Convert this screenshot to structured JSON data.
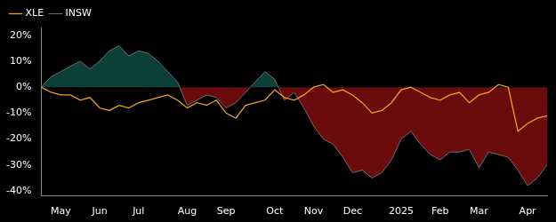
{
  "chart_data": {
    "type": "line",
    "categories": [
      null,
      null,
      "May",
      null,
      null,
      null,
      "Jun",
      null,
      null,
      null,
      "Jul",
      null,
      null,
      null,
      null,
      "Aug",
      null,
      null,
      null,
      "Sep",
      null,
      null,
      null,
      null,
      "Oct",
      null,
      null,
      null,
      "Nov",
      null,
      null,
      null,
      "Dec",
      null,
      null,
      null,
      null,
      "2025",
      null,
      null,
      null,
      "Feb",
      null,
      null,
      null,
      "Mar",
      null,
      null,
      null,
      null,
      "Apr",
      null,
      null
    ],
    "series": [
      {
        "name": "INSW",
        "color": "#6e6e6e",
        "values": [
          0,
          4,
          6,
          8,
          10,
          7,
          10,
          14,
          16,
          12,
          14,
          13,
          10,
          6,
          2,
          -7,
          -5,
          -3,
          -4,
          -8,
          -6,
          -2,
          2,
          6,
          3,
          -5,
          -2,
          -8,
          -15,
          -20,
          -22,
          -27,
          -33,
          -32,
          -35,
          -33,
          -28,
          -20,
          -17,
          -22,
          -26,
          -28,
          -25,
          -25,
          -24,
          -31,
          -25,
          -26,
          -27,
          -32,
          -38,
          -35,
          -30
        ]
      },
      {
        "name": "XLE",
        "color": "#f0a020",
        "values": [
          0,
          -2,
          -3,
          -3,
          -5,
          -4,
          -8,
          -9,
          -7,
          -8,
          -6,
          -5,
          -4,
          -3,
          -5,
          -8,
          -6,
          -7,
          -5,
          -10,
          -12,
          -7,
          -6,
          -5,
          -1,
          -4,
          -5,
          -3,
          0,
          1,
          -2,
          -1,
          -3,
          -6,
          -10,
          -9,
          -6,
          -1,
          0,
          -2,
          -4,
          -5,
          -3,
          -2,
          -6,
          -3,
          -2,
          1,
          0,
          -17,
          -14,
          -12,
          -11
        ]
      }
    ],
    "ylim": [
      -42,
      23
    ],
    "yticks": [
      {
        "value": -40,
        "label": "-40%"
      },
      {
        "value": -30,
        "label": "-30%"
      },
      {
        "value": -20,
        "label": "-20%"
      },
      {
        "value": -10,
        "label": "-10%"
      },
      {
        "value": 0,
        "label": "0%"
      },
      {
        "value": 10,
        "label": "10%"
      },
      {
        "value": 20,
        "label": "20%"
      }
    ],
    "grid": false,
    "legend": "upper left"
  }
}
